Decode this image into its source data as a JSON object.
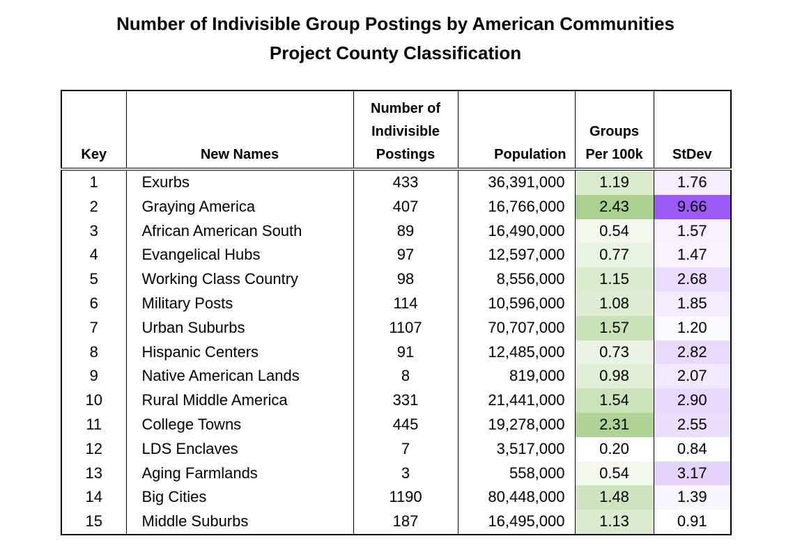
{
  "title_line1": "Number of Indivisible Group Postings by American Communities",
  "title_line2": "Project County Classification",
  "headers": {
    "key": "Key",
    "names": "New Names",
    "postings_l1": "Number of",
    "postings_l2": "Indivisible",
    "postings_l3": "Postings",
    "population": "Population",
    "groups_l1": "Groups",
    "groups_l2": "Per 100k",
    "stdev": "StDev"
  },
  "colors": {
    "groups_scale_low": "#ffffff",
    "groups_scale_high": "#a9d08e",
    "stdev_scale_low": "#ffffff",
    "stdev_scale_high": "#9b59f5"
  },
  "chart_data": {
    "type": "table",
    "title": "Number of Indivisible Group Postings by American Communities Project County Classification",
    "columns": [
      "Key",
      "New Names",
      "Number of Indivisible Postings",
      "Population",
      "Groups Per 100k",
      "StDev"
    ],
    "rows": [
      {
        "key": "1",
        "name": "Exurbs",
        "postings": "433",
        "population": "36,391,000",
        "groups": "1.19",
        "stdev": "1.76"
      },
      {
        "key": "2",
        "name": "Graying America",
        "postings": "407",
        "population": "16,766,000",
        "groups": "2.43",
        "stdev": "9.66"
      },
      {
        "key": "3",
        "name": "African American South",
        "postings": "89",
        "population": "16,490,000",
        "groups": "0.54",
        "stdev": "1.57"
      },
      {
        "key": "4",
        "name": "Evangelical Hubs",
        "postings": "97",
        "population": "12,597,000",
        "groups": "0.77",
        "stdev": "1.47"
      },
      {
        "key": "5",
        "name": "Working Class Country",
        "postings": "98",
        "population": "8,556,000",
        "groups": "1.15",
        "stdev": "2.68"
      },
      {
        "key": "6",
        "name": "Military Posts",
        "postings": "114",
        "population": "10,596,000",
        "groups": "1.08",
        "stdev": "1.85"
      },
      {
        "key": "7",
        "name": "Urban Suburbs",
        "postings": "1107",
        "population": "70,707,000",
        "groups": "1.57",
        "stdev": "1.20"
      },
      {
        "key": "8",
        "name": "Hispanic Centers",
        "postings": "91",
        "population": "12,485,000",
        "groups": "0.73",
        "stdev": "2.82"
      },
      {
        "key": "9",
        "name": "Native American Lands",
        "postings": "8",
        "population": "819,000",
        "groups": "0.98",
        "stdev": "2.07"
      },
      {
        "key": "10",
        "name": "Rural Middle America",
        "postings": "331",
        "population": "21,441,000",
        "groups": "1.54",
        "stdev": "2.90"
      },
      {
        "key": "11",
        "name": "College Towns",
        "postings": "445",
        "population": "19,278,000",
        "groups": "2.31",
        "stdev": "2.55"
      },
      {
        "key": "12",
        "name": "LDS Enclaves",
        "postings": "7",
        "population": "3,517,000",
        "groups": "0.20",
        "stdev": "0.84"
      },
      {
        "key": "13",
        "name": "Aging Farmlands",
        "postings": "3",
        "population": "558,000",
        "groups": "0.54",
        "stdev": "3.17"
      },
      {
        "key": "14",
        "name": "Big Cities",
        "postings": "1190",
        "population": "80,448,000",
        "groups": "1.48",
        "stdev": "1.39"
      },
      {
        "key": "15",
        "name": "Middle Suburbs",
        "postings": "187",
        "population": "16,495,000",
        "groups": "1.13",
        "stdev": "0.91"
      }
    ]
  }
}
